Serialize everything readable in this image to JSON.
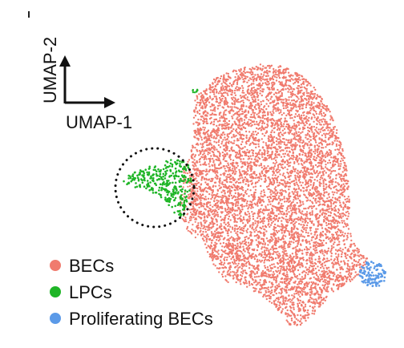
{
  "chart_data": {
    "type": "scatter",
    "title": "",
    "xlabel": "UMAP-1",
    "ylabel": "UMAP-2",
    "grid": false,
    "axis_ticks": false,
    "legend_position": "bottom-left",
    "series": [
      {
        "name": "BECs",
        "color": "#f07b6e",
        "approx_points": 6500
      },
      {
        "name": "LPCs",
        "color": "#1fb527",
        "approx_points": 320
      },
      {
        "name": "Proliferating BECs",
        "color": "#5b9ae8",
        "approx_points": 120
      }
    ],
    "annotations": [
      {
        "type": "dotted-circle",
        "highlights": "LPCs",
        "color": "#111111"
      }
    ]
  }
}
